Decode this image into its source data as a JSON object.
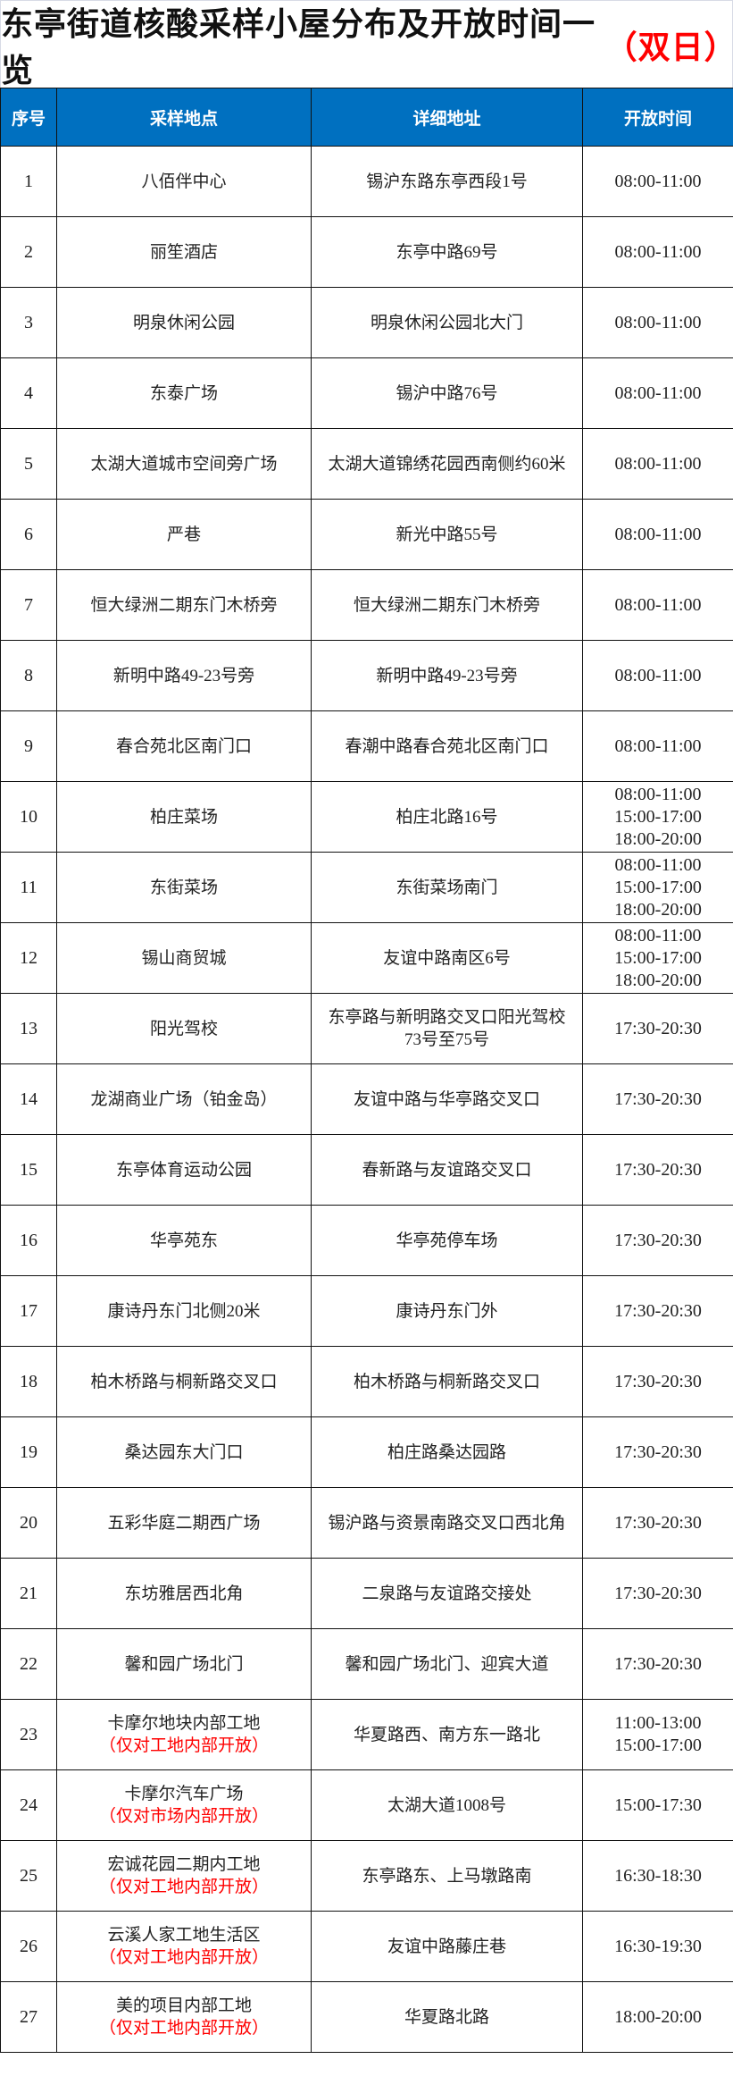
{
  "title": {
    "main": "东亭街道核酸采样小屋分布及开放时间一览",
    "suffix": "（双日）",
    "suffix_color": "#ff0000"
  },
  "header": {
    "no": "序号",
    "site": "采样地点",
    "address": "详细地址",
    "hours": "开放时间",
    "bg_color": "#0070c0"
  },
  "rows": [
    {
      "no": "1",
      "site": "八佰伴中心",
      "address": [
        "锡沪东路东亭西段1号"
      ],
      "hours": [
        "08:00-11:00"
      ]
    },
    {
      "no": "2",
      "site": "丽笙酒店",
      "address": [
        "东亭中路69号"
      ],
      "hours": [
        "08:00-11:00"
      ]
    },
    {
      "no": "3",
      "site": "明泉休闲公园",
      "address": [
        "明泉休闲公园北大门"
      ],
      "hours": [
        "08:00-11:00"
      ]
    },
    {
      "no": "4",
      "site": "东泰广场",
      "address": [
        "锡沪中路76号"
      ],
      "hours": [
        "08:00-11:00"
      ]
    },
    {
      "no": "5",
      "site": "太湖大道城市空间旁广场",
      "address": [
        "太湖大道锦绣花园西南侧约60米"
      ],
      "hours": [
        "08:00-11:00"
      ]
    },
    {
      "no": "6",
      "site": "严巷",
      "address": [
        "新光中路55号"
      ],
      "hours": [
        "08:00-11:00"
      ]
    },
    {
      "no": "7",
      "site": "恒大绿洲二期东门木桥旁",
      "address": [
        "恒大绿洲二期东门木桥旁"
      ],
      "hours": [
        "08:00-11:00"
      ]
    },
    {
      "no": "8",
      "site": "新明中路49-23号旁",
      "address": [
        "新明中路49-23号旁"
      ],
      "hours": [
        "08:00-11:00"
      ]
    },
    {
      "no": "9",
      "site": "春合苑北区南门口",
      "address": [
        "春潮中路春合苑北区南门口"
      ],
      "hours": [
        "08:00-11:00"
      ]
    },
    {
      "no": "10",
      "site": "柏庄菜场",
      "address": [
        "柏庄北路16号"
      ],
      "hours": [
        "08:00-11:00",
        "15:00-17:00",
        "18:00-20:00"
      ]
    },
    {
      "no": "11",
      "site": "东街菜场",
      "address": [
        "东街菜场南门"
      ],
      "hours": [
        "08:00-11:00",
        "15:00-17:00",
        "18:00-20:00"
      ]
    },
    {
      "no": "12",
      "site": "锡山商贸城",
      "address": [
        "友谊中路南区6号"
      ],
      "hours": [
        "08:00-11:00",
        "15:00-17:00",
        "18:00-20:00"
      ]
    },
    {
      "no": "13",
      "site": "阳光驾校",
      "address": [
        "东亭路与新明路交叉口阳光驾校",
        "73号至75号"
      ],
      "hours": [
        "17:30-20:30"
      ]
    },
    {
      "no": "14",
      "site": "龙湖商业广场（铂金岛）",
      "address": [
        "友谊中路与华亭路交叉口"
      ],
      "hours": [
        "17:30-20:30"
      ]
    },
    {
      "no": "15",
      "site": "东亭体育运动公园",
      "address": [
        "春新路与友谊路交叉口"
      ],
      "hours": [
        "17:30-20:30"
      ]
    },
    {
      "no": "16",
      "site": "华亭苑东",
      "address": [
        "华亭苑停车场"
      ],
      "hours": [
        "17:30-20:30"
      ]
    },
    {
      "no": "17",
      "site": "康诗丹东门北侧20米",
      "address": [
        "康诗丹东门外"
      ],
      "hours": [
        "17:30-20:30"
      ]
    },
    {
      "no": "18",
      "site": "柏木桥路与桐新路交叉口",
      "address": [
        "柏木桥路与桐新路交叉口"
      ],
      "hours": [
        "17:30-20:30"
      ]
    },
    {
      "no": "19",
      "site": "桑达园东大门口",
      "address": [
        "柏庄路桑达园路"
      ],
      "hours": [
        "17:30-20:30"
      ]
    },
    {
      "no": "20",
      "site": "五彩华庭二期西广场",
      "address": [
        "锡沪路与资景南路交叉口西北角"
      ],
      "hours": [
        "17:30-20:30"
      ]
    },
    {
      "no": "21",
      "site": "东坊雅居西北角",
      "address": [
        "二泉路与友谊路交接处"
      ],
      "hours": [
        "17:30-20:30"
      ]
    },
    {
      "no": "22",
      "site": "馨和园广场北门",
      "address": [
        "馨和园广场北门、迎宾大道"
      ],
      "hours": [
        "17:30-20:30"
      ]
    },
    {
      "no": "23",
      "site": "卡摩尔地块内部工地",
      "note": "（仅对工地内部开放）",
      "address": [
        "华夏路西、南方东一路北"
      ],
      "hours": [
        "11:00-13:00",
        "15:00-17:00"
      ]
    },
    {
      "no": "24",
      "site": "卡摩尔汽车广场",
      "note": "（仅对市场内部开放）",
      "address": [
        "太湖大道1008号"
      ],
      "hours": [
        "15:00-17:30"
      ]
    },
    {
      "no": "25",
      "site": "宏诚花园二期内工地",
      "note": "（仅对工地内部开放）",
      "address": [
        "东亭路东、上马墩路南"
      ],
      "hours": [
        "16:30-18:30"
      ]
    },
    {
      "no": "26",
      "site": "云溪人家工地生活区",
      "note": "（仅对工地内部开放）",
      "address": [
        "友谊中路藤庄巷"
      ],
      "hours": [
        "16:30-19:30"
      ]
    },
    {
      "no": "27",
      "site": "美的项目内部工地",
      "note": "（仅对工地内部开放）",
      "address": [
        "华夏路北路"
      ],
      "hours": [
        "18:00-20:00"
      ]
    }
  ]
}
